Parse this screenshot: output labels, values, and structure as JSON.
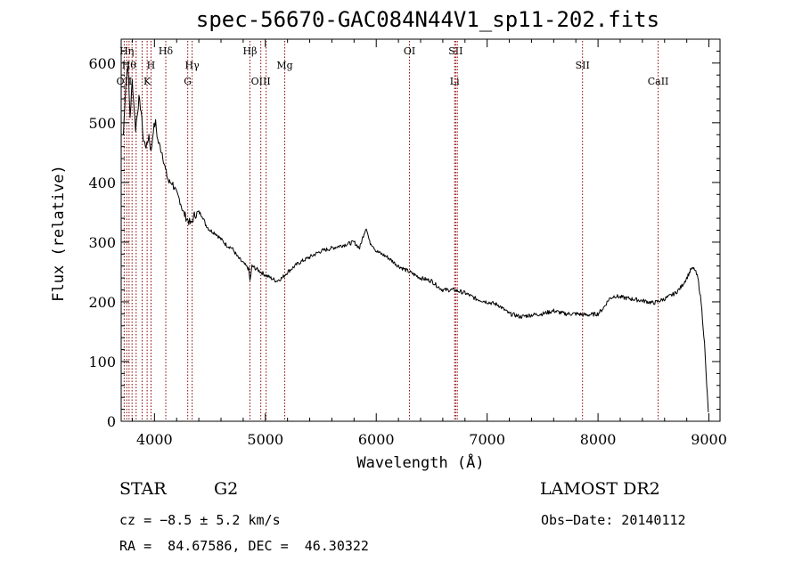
{
  "chart_data": {
    "type": "line",
    "title": "spec-56670-GAC084N44V1_sp11-202.fits",
    "xlabel": "Wavelength (Å)",
    "ylabel": "Flux (relative)",
    "xlim": [
      3700,
      9100
    ],
    "ylim": [
      0,
      640
    ],
    "xticks": [
      4000,
      5000,
      6000,
      7000,
      8000,
      9000
    ],
    "yticks": [
      0,
      100,
      200,
      300,
      400,
      500,
      600
    ],
    "grid": false,
    "line_color": "#000000",
    "marker_color": "#8b0000",
    "series": [
      {
        "x": [
          3720,
          3740,
          3760,
          3780,
          3800,
          3830,
          3860,
          3880,
          3900,
          3930,
          3950,
          3970,
          3990,
          4010,
          4030,
          4050,
          4070,
          4100,
          4130,
          4160,
          4200,
          4230,
          4260,
          4290,
          4310,
          4330,
          4360,
          4400,
          4430,
          4460,
          4500,
          4550,
          4600,
          4650,
          4700,
          4750,
          4800,
          4850,
          4861,
          4880,
          4920,
          4960,
          5000,
          5050,
          5100,
          5150,
          5200,
          5300,
          5400,
          5500,
          5600,
          5700,
          5800,
          5850,
          5890,
          5910,
          5940,
          5970,
          6000,
          6050,
          6100,
          6200,
          6300,
          6400,
          6500,
          6560,
          6600,
          6700,
          6800,
          6900,
          7000,
          7100,
          7200,
          7250,
          7300,
          7400,
          7500,
          7600,
          7700,
          7800,
          7900,
          8000,
          8050,
          8100,
          8150,
          8200,
          8300,
          8400,
          8500,
          8600,
          8700,
          8750,
          8800,
          8840,
          8870,
          8900,
          8930,
          8960,
          8980,
          8995
        ],
        "y": [
          480,
          560,
          600,
          510,
          570,
          490,
          540,
          520,
          470,
          460,
          480,
          450,
          490,
          500,
          470,
          460,
          450,
          420,
          400,
          400,
          380,
          370,
          350,
          340,
          335,
          330,
          345,
          350,
          345,
          330,
          320,
          315,
          305,
          295,
          290,
          275,
          265,
          255,
          235,
          260,
          255,
          250,
          245,
          240,
          235,
          240,
          250,
          265,
          275,
          285,
          290,
          295,
          300,
          290,
          315,
          325,
          300,
          295,
          285,
          280,
          275,
          260,
          250,
          240,
          235,
          225,
          220,
          220,
          215,
          205,
          200,
          195,
          180,
          178,
          175,
          178,
          180,
          185,
          180,
          180,
          178,
          180,
          190,
          205,
          210,
          208,
          205,
          202,
          198,
          205,
          215,
          225,
          240,
          255,
          255,
          240,
          200,
          130,
          60,
          15
        ]
      }
    ],
    "lines": [
      {
        "x": 3727,
        "label": "OII",
        "row": 3
      },
      {
        "x": 3750,
        "label": "Hη",
        "row": 1
      },
      {
        "x": 3771,
        "label": "Hθ",
        "row": 2
      },
      {
        "x": 3798,
        "label": "",
        "row": 0
      },
      {
        "x": 3835,
        "label": "",
        "row": 0
      },
      {
        "x": 3889,
        "label": "",
        "row": 0
      },
      {
        "x": 3934,
        "label": "K",
        "row": 3
      },
      {
        "x": 3969,
        "label": "H",
        "row": 2
      },
      {
        "x": 4102,
        "label": "Hδ",
        "row": 1
      },
      {
        "x": 4300,
        "label": "G",
        "row": 3
      },
      {
        "x": 4340,
        "label": "Hγ",
        "row": 2
      },
      {
        "x": 4861,
        "label": "Hβ",
        "row": 1
      },
      {
        "x": 4959,
        "label": "OIII",
        "row": 3
      },
      {
        "x": 5007,
        "label": "",
        "row": 0
      },
      {
        "x": 5175,
        "label": "Mg",
        "row": 2
      },
      {
        "x": 6300,
        "label": "OI",
        "row": 1
      },
      {
        "x": 6707,
        "label": "Li",
        "row": 3
      },
      {
        "x": 6716,
        "label": "SII",
        "row": 1
      },
      {
        "x": 6731,
        "label": "",
        "row": 0
      },
      {
        "x": 7860,
        "label": "SII",
        "row": 2
      },
      {
        "x": 8542,
        "label": "CaII",
        "row": 3
      }
    ]
  },
  "info": {
    "object_class": "STAR",
    "subclass": "G2",
    "survey": "LAMOST DR2",
    "cz": "cz = −8.5 ± 5.2 km/s",
    "obs_date": "Obs−Date: 20140112",
    "coords": "RA =  84.67586, DEC =  46.30322"
  }
}
